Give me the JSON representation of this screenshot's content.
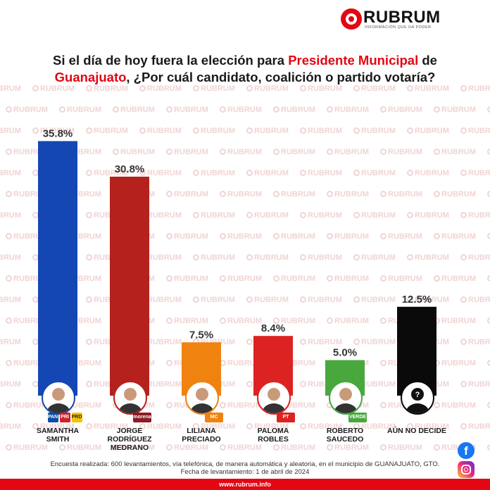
{
  "brand": {
    "name": "RUBRUM",
    "tagline": "INFORMACIÓN QUE DA PODER",
    "watermark": "RUBRUM",
    "accent": "#e30613"
  },
  "title": {
    "part1": "Si el día de hoy fuera la elección para ",
    "highlight1": "Presidente Municipal",
    "part2": " de ",
    "highlight2": "Guanajuato",
    "part3": ", ¿Por cuál candidato, coalición o partido votaría?"
  },
  "chart_data": {
    "type": "bar",
    "categories": [
      "SAMANTHA SMITH",
      "JORGE RODRÍGUEZ MEDRANO",
      "LILIANA PRECIADO",
      "PALOMA ROBLES",
      "ROBERTO SAUCEDO",
      "AÚN NO DECIDE"
    ],
    "values": [
      35.8,
      30.8,
      7.5,
      8.4,
      5.0,
      12.5
    ],
    "value_labels": [
      "35.8%",
      "30.8%",
      "7.5%",
      "8.4%",
      "5.0%",
      "12.5%"
    ],
    "colors": [
      "#1446b4",
      "#b5211d",
      "#f08210",
      "#dd2322",
      "#48a83e",
      "#0a0a0a"
    ],
    "ylim": [
      0,
      40
    ],
    "grid": false,
    "legend": "none"
  },
  "candidates": [
    {
      "name_lines": [
        "SAMANTHA",
        "SMITH"
      ],
      "party_badges": [
        "PAN",
        "PRI",
        "PRD"
      ],
      "badge_colors": [
        "#0b4ea2",
        "#d32027",
        "#f5c400"
      ]
    },
    {
      "name_lines": [
        "JORGE",
        "RODRÍGUEZ",
        "MEDRANO"
      ],
      "party_badges": [
        "morena"
      ],
      "badge_colors": [
        "#8c1b25"
      ]
    },
    {
      "name_lines": [
        "LILIANA",
        "PRECIADO"
      ],
      "party_badges": [
        "MC"
      ],
      "badge_colors": [
        "#f08210"
      ]
    },
    {
      "name_lines": [
        "PALOMA",
        "ROBLES"
      ],
      "party_badges": [
        "PT"
      ],
      "badge_colors": [
        "#dd2322"
      ]
    },
    {
      "name_lines": [
        "ROBERTO",
        "SAUCEDO"
      ],
      "party_badges": [
        "VERDE"
      ],
      "badge_colors": [
        "#48a83e"
      ]
    },
    {
      "name_lines": [
        "AÚN NO DECIDE"
      ],
      "party_badges": [],
      "badge_colors": []
    }
  ],
  "footnote": {
    "line1": "Encuesta realizada: 600 levantamientos, vía telefónica, de manera automática y aleatoria, en el municipio de GUANAJUATO, GTO.",
    "line2": "Fecha de levantamiento: 1 de abril de 2024"
  },
  "footer": {
    "url": "www.rubrum.info"
  },
  "social": {
    "facebook_icon": "facebook-icon",
    "instagram_icon": "instagram-icon"
  }
}
